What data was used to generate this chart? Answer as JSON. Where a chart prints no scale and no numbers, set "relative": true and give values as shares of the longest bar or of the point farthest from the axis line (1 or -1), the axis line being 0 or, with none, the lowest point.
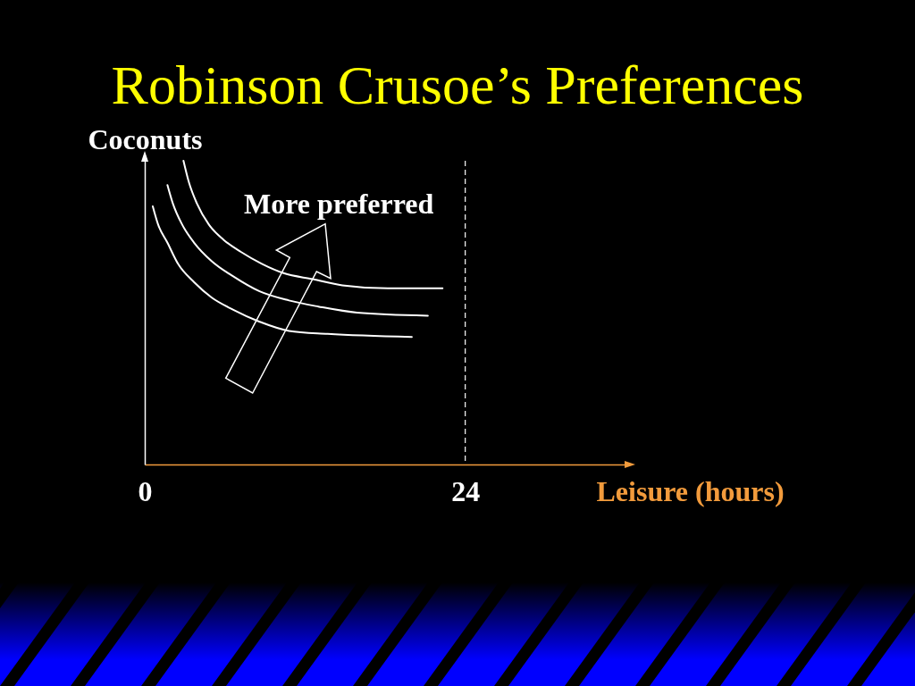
{
  "chart_data": {
    "type": "line",
    "title": "Robinson Crusoe’s Preferences",
    "xlabel": "Leisure (hours)",
    "ylabel": "Coconuts",
    "relative": true,
    "xlim": [
      0,
      36
    ],
    "xticks": [
      0,
      24
    ],
    "tick_labels": "x",
    "series": [
      {
        "color": "#ffffff",
        "x": [
          2.9,
          3.3,
          3.9,
          4.8,
          5.9,
          7.2,
          8.8,
          10.4,
          12.6,
          14.8,
          18.2,
          22.3
        ],
        "values": [
          1,
          0.93,
          0.86,
          0.79,
          0.74,
          0.7,
          0.66,
          0.63,
          0.61,
          0.59,
          0.58,
          0.58
        ]
      },
      {
        "color": "#ffffff",
        "x": [
          1.7,
          2.1,
          2.8,
          3.7,
          5.0,
          6.6,
          8.6,
          10.8,
          13.0,
          15.9,
          21.2
        ],
        "values": [
          0.92,
          0.86,
          0.79,
          0.73,
          0.67,
          0.62,
          0.57,
          0.54,
          0.52,
          0.5,
          0.49
        ]
      },
      {
        "color": "#ffffff",
        "x": [
          0.6,
          1.0,
          1.7,
          2.5,
          3.7,
          5.0,
          6.6,
          8.6,
          10.8,
          13.7,
          20.0
        ],
        "values": [
          0.85,
          0.79,
          0.73,
          0.66,
          0.6,
          0.55,
          0.51,
          0.47,
          0.44,
          0.43,
          0.42
        ]
      }
    ],
    "ref_lines": [
      {
        "axis": "x",
        "value": 24,
        "color": "#ffffff",
        "line_style": "dashed"
      }
    ],
    "annotations": [
      "More preferred"
    ]
  }
}
